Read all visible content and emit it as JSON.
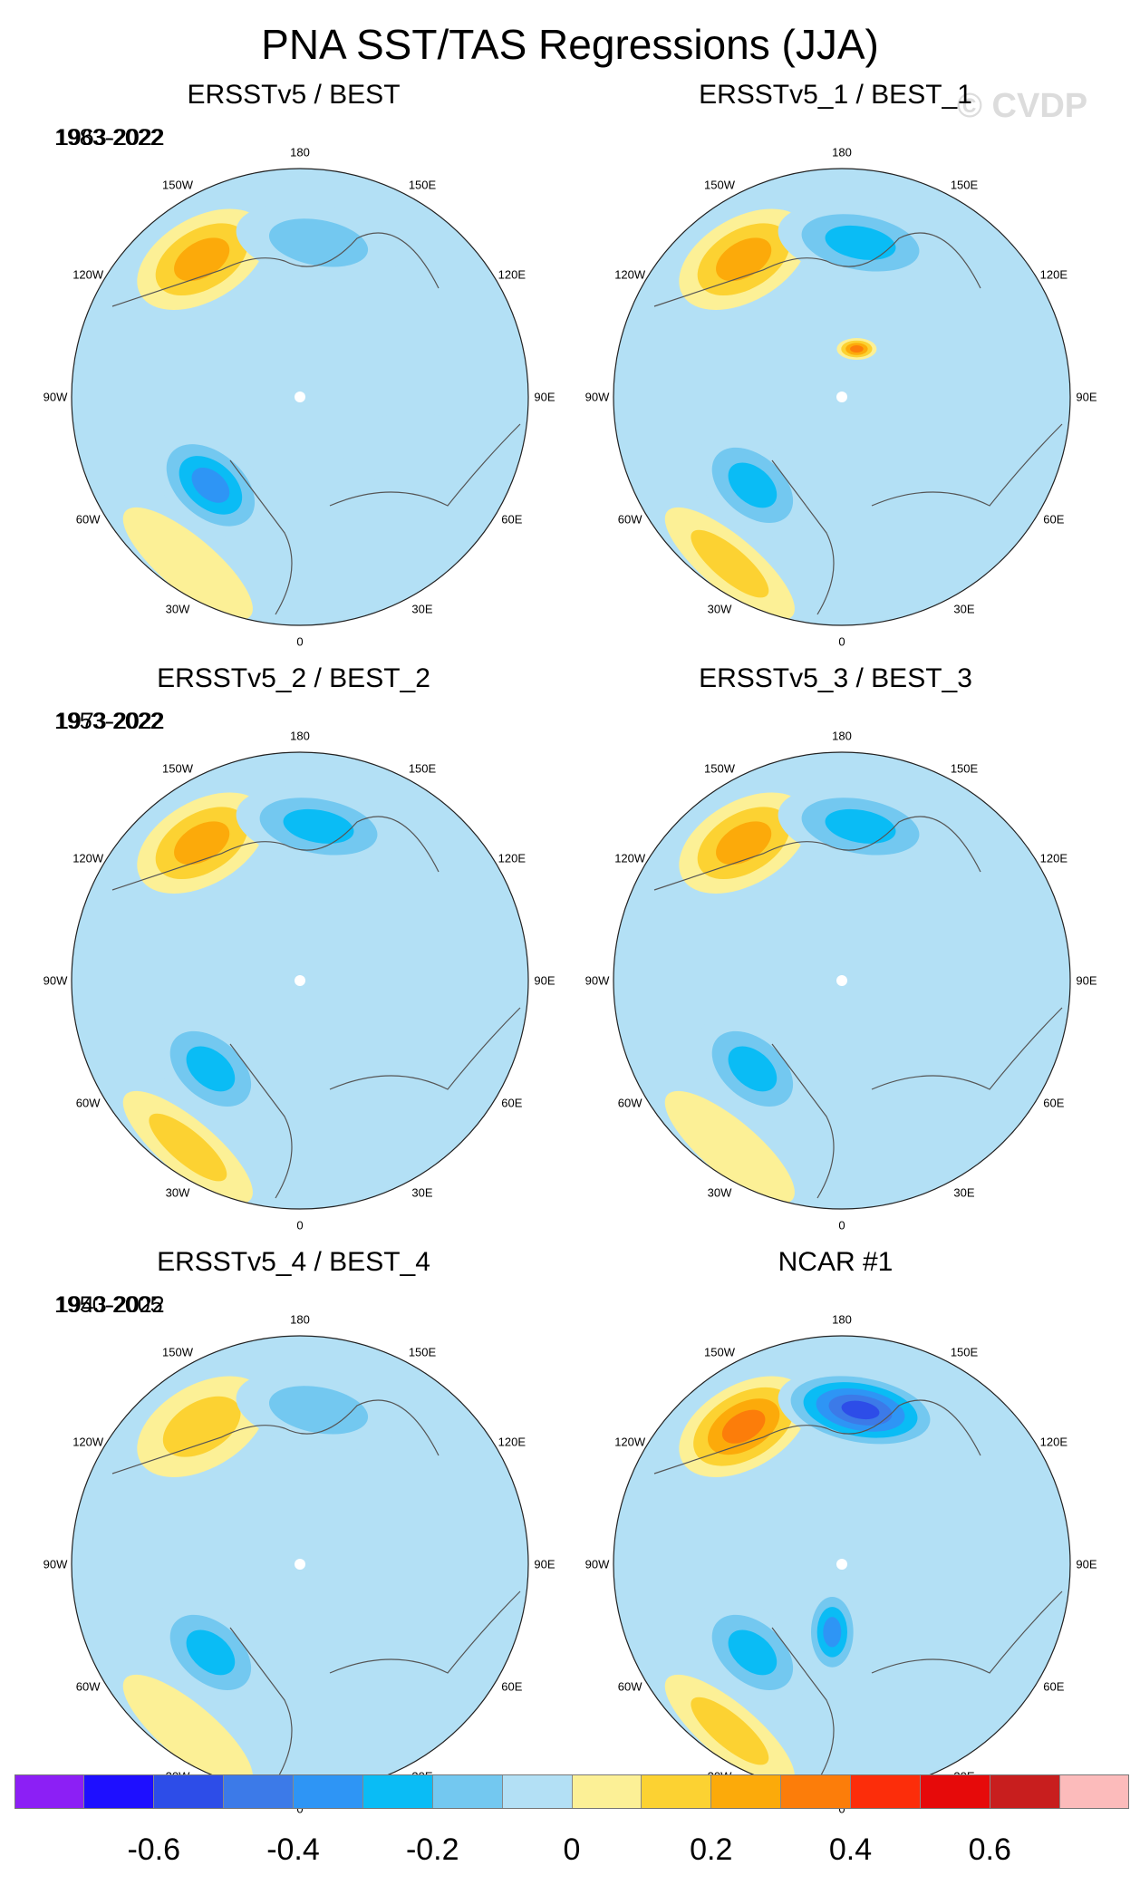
{
  "title": "PNA SST/TAS Regressions (JJA)",
  "watermark": "© CVDP",
  "chart_data": [
    {
      "type": "heatmap",
      "title": "ERSSTv5 / BEST",
      "period": "1963-2022",
      "projection": "north-polar-stereographic",
      "features": [
        {
          "region": "North Pacific (Gulf of Alaska)",
          "value": 0.25
        },
        {
          "region": "Bering Sea / NW Pacific",
          "value": -0.2
        },
        {
          "region": "North Atlantic (Labrador/Greenland)",
          "value": -0.35
        },
        {
          "region": "Subtropical Atlantic",
          "value": 0.1
        },
        {
          "region": "Eurasia",
          "value": -0.05
        }
      ]
    },
    {
      "type": "heatmap",
      "title": "ERSSTv5_1 / BEST_1",
      "period": "1983-2022",
      "projection": "north-polar-stereographic",
      "features": [
        {
          "region": "North Pacific (Gulf of Alaska)",
          "value": 0.25
        },
        {
          "region": "Bering Sea / NW Pacific",
          "value": -0.3
        },
        {
          "region": "North Atlantic (Labrador/Greenland)",
          "value": -0.25
        },
        {
          "region": "Subtropical Atlantic",
          "value": 0.2
        },
        {
          "region": "Arctic coast",
          "value": 0.4
        }
      ]
    },
    {
      "type": "heatmap",
      "title": "ERSSTv5_2 / BEST_2",
      "period": "1973-2022",
      "projection": "north-polar-stereographic",
      "features": [
        {
          "region": "North Pacific (Gulf of Alaska)",
          "value": 0.25
        },
        {
          "region": "Bering Sea / NW Pacific",
          "value": -0.25
        },
        {
          "region": "North Atlantic (Labrador/Greenland)",
          "value": -0.3
        },
        {
          "region": "Subtropical Atlantic",
          "value": 0.15
        }
      ]
    },
    {
      "type": "heatmap",
      "title": "ERSSTv5_3 / BEST_3",
      "period": "1953-2022",
      "projection": "north-polar-stereographic",
      "features": [
        {
          "region": "North Pacific (Gulf of Alaska)",
          "value": 0.25
        },
        {
          "region": "Bering Sea / NW Pacific",
          "value": -0.25
        },
        {
          "region": "North Atlantic (Labrador/Greenland)",
          "value": -0.3
        },
        {
          "region": "Subtropical Atlantic",
          "value": 0.1
        }
      ]
    },
    {
      "type": "heatmap",
      "title": "ERSSTv5_4 / BEST_4",
      "period": "1943-2022",
      "projection": "north-polar-stereographic",
      "features": [
        {
          "region": "North Pacific (Gulf of Alaska)",
          "value": 0.2
        },
        {
          "region": "Bering Sea / NW Pacific",
          "value": -0.2
        },
        {
          "region": "North Atlantic (Labrador/Greenland)",
          "value": -0.25
        },
        {
          "region": "Subtropical Atlantic",
          "value": 0.1
        }
      ]
    },
    {
      "type": "heatmap",
      "title": "NCAR #1",
      "period": "1950-2005",
      "projection": "north-polar-stereographic",
      "features": [
        {
          "region": "North Pacific (Gulf of Alaska)",
          "value": 0.35
        },
        {
          "region": "Bering Sea / NW Pacific",
          "value": -0.55
        },
        {
          "region": "North Atlantic (Labrador/Greenland)",
          "value": -0.3
        },
        {
          "region": "Subtropical Atlantic",
          "value": 0.2
        },
        {
          "region": "Greenland Sea",
          "value": -0.35
        }
      ]
    }
  ],
  "longitude_labels": [
    "180",
    "150E",
    "120E",
    "90E",
    "60E",
    "30E",
    "0",
    "30W",
    "60W",
    "90W",
    "120W",
    "150W"
  ],
  "colorbar": {
    "colors": [
      "#8c1ff5",
      "#1e0fff",
      "#2d4de8",
      "#3c7ae8",
      "#2e95f5",
      "#0abcf5",
      "#73c8f0",
      "#b3e0f5",
      "#fcf096",
      "#fcd232",
      "#fcaa0a",
      "#fc7d0a",
      "#fc2d0a",
      "#e60a0a",
      "#c81e1e",
      "#fcbbbb"
    ],
    "tick_labels": [
      "-0.6",
      "-0.4",
      "-0.2",
      "0",
      "0.2",
      "0.4",
      "0.6"
    ]
  }
}
